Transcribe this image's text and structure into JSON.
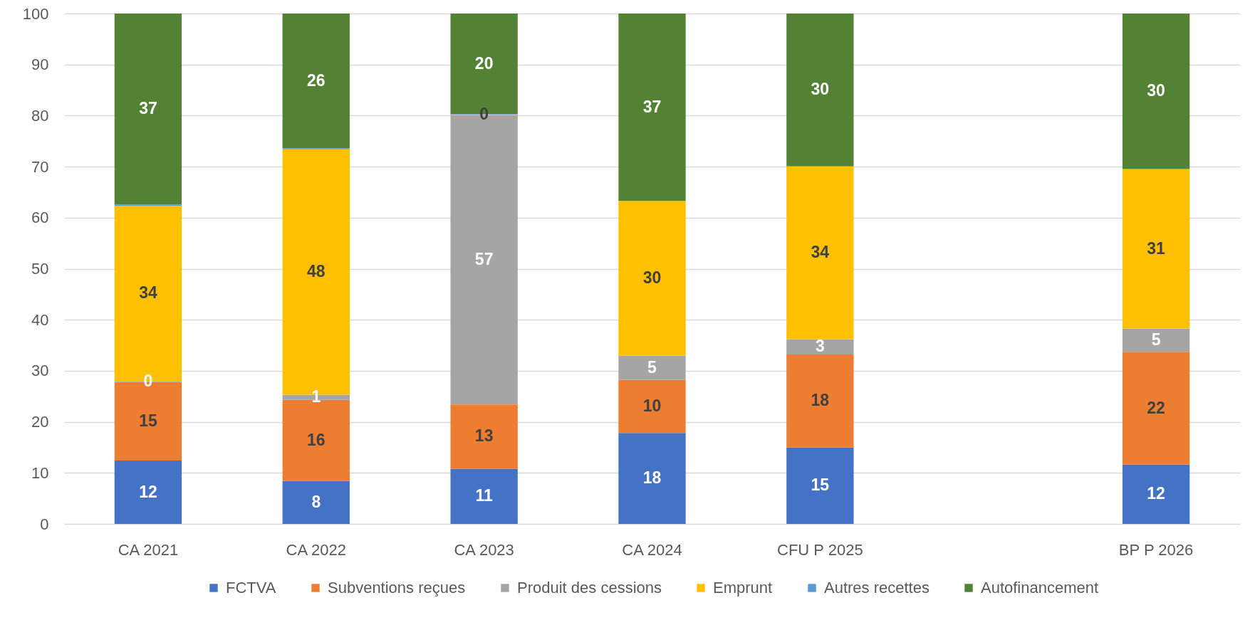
{
  "chart_data": {
    "type": "bar",
    "stacked": true,
    "categories": [
      "CA 2021",
      "CA 2022",
      "CA 2023",
      "CA 2024",
      "CFU P 2025",
      null,
      "BP P 2026"
    ],
    "series": [
      {
        "name": "FCTVA",
        "color": "#4472c4",
        "values": [
          12.4,
          8.4,
          10.8,
          17.8,
          15.0,
          null,
          11.6
        ],
        "value_labels": [
          "12",
          "8",
          "11",
          "18",
          "15",
          null,
          "12"
        ]
      },
      {
        "name": "Subventions reçues",
        "color": "#ed7d31",
        "values": [
          15.4,
          15.9,
          12.6,
          10.4,
          18.2,
          null,
          22.1
        ],
        "value_labels": [
          "15",
          "16",
          "13",
          "10",
          "18",
          null,
          "22"
        ]
      },
      {
        "name": "Produit des cessions",
        "color": "#a5a5a5",
        "values": [
          0.2,
          1.0,
          56.7,
          4.8,
          3.0,
          null,
          4.6
        ],
        "value_labels": [
          "0",
          "1",
          "57",
          "5",
          "3",
          null,
          "5"
        ]
      },
      {
        "name": "Emprunt",
        "color": "#ffc000",
        "values": [
          34.3,
          48.1,
          0.1,
          30.3,
          33.8,
          null,
          31.2
        ],
        "value_labels": [
          "34",
          "48",
          "0",
          "30",
          "34",
          null,
          "31"
        ]
      },
      {
        "name": "Autres recettes",
        "color": "#5b9bd5",
        "values": [
          0.3,
          0.2,
          0.1,
          0,
          0.1,
          null,
          0.1
        ]
      },
      {
        "name": "Autofinancement",
        "color": "#548235",
        "values": [
          37.4,
          26.4,
          19.7,
          36.7,
          29.9,
          null,
          30.4
        ],
        "value_labels": [
          "37",
          "26",
          "20",
          "37",
          "30",
          null,
          "30"
        ]
      }
    ],
    "ylim": [
      0,
      100
    ],
    "yticks": [
      0,
      10,
      20,
      30,
      40,
      50,
      60,
      70,
      80,
      90,
      100
    ],
    "grid": "y",
    "legend": "bottom"
  }
}
